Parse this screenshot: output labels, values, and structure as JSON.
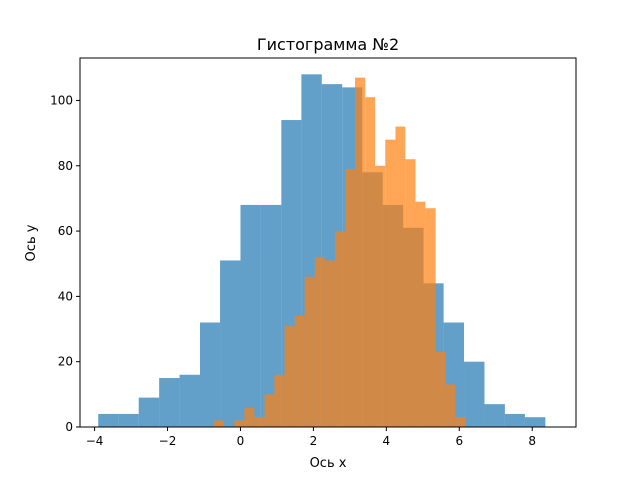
{
  "chart_data": {
    "type": "bar",
    "subtype": "overlaid-histogram",
    "title": "Гистограмма №2",
    "xlabel": "Ось x",
    "ylabel": "Ось y",
    "xlim": [
      -4.4,
      9.2
    ],
    "ylim": [
      0,
      113
    ],
    "xticks": [
      -4,
      -2,
      0,
      2,
      4,
      6,
      8
    ],
    "yticks": [
      0,
      20,
      40,
      60,
      80,
      100
    ],
    "grid": false,
    "legend": "none",
    "series": [
      {
        "color": "#1f77b4",
        "opacity": 0.7,
        "bin_edges": [
          -3.9,
          -3.34,
          -2.79,
          -2.23,
          -1.67,
          -1.11,
          -0.56,
          0.0,
          0.56,
          1.12,
          1.67,
          2.23,
          2.79,
          3.34,
          3.9,
          4.46,
          5.02,
          5.57,
          6.13,
          6.69,
          7.25,
          7.8,
          8.36
        ],
        "values": [
          4,
          4,
          9,
          15,
          16,
          32,
          51,
          68,
          68,
          94,
          108,
          105,
          104,
          78,
          68,
          61,
          44,
          32,
          20,
          7,
          4,
          3
        ]
      },
      {
        "color": "#ff7f0e",
        "opacity": 0.7,
        "bin_edges": [
          -0.72,
          -0.45,
          -0.17,
          0.11,
          0.38,
          0.66,
          0.93,
          1.21,
          1.49,
          1.76,
          2.04,
          2.31,
          2.59,
          2.87,
          3.14,
          3.42,
          3.69,
          3.97,
          4.25,
          4.52,
          4.8,
          5.07,
          5.35,
          5.62,
          5.9,
          6.18
        ],
        "values": [
          2,
          0,
          2,
          6,
          3,
          10,
          16,
          31,
          34,
          46,
          52,
          51,
          60,
          79,
          107,
          101,
          80,
          88,
          92,
          82,
          69,
          67,
          23,
          13,
          3
        ]
      }
    ]
  }
}
